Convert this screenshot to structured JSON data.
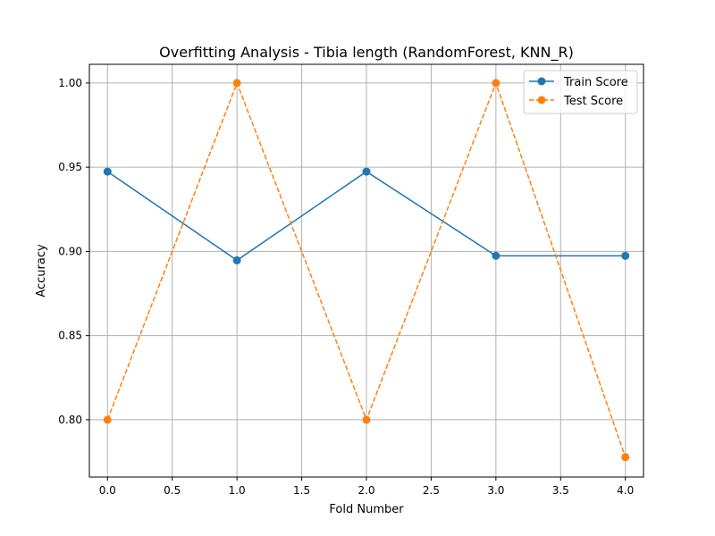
{
  "chart_data": {
    "type": "line",
    "title": "Overfitting Analysis - Tibia length (RandomForest, KNN_R)",
    "xlabel": "Fold Number",
    "ylabel": "Accuracy",
    "xlim": [
      -0.14,
      4.14
    ],
    "ylim": [
      0.766,
      1.0111
    ],
    "x": [
      0,
      1,
      2,
      3,
      4
    ],
    "xticks": [
      0.0,
      0.5,
      1.0,
      1.5,
      2.0,
      2.5,
      3.0,
      3.5,
      4.0
    ],
    "xtick_labels": [
      "0.0",
      "0.5",
      "1.0",
      "1.5",
      "2.0",
      "2.5",
      "3.0",
      "3.5",
      "4.0"
    ],
    "yticks": [
      0.8,
      0.85,
      0.9,
      0.95,
      1.0
    ],
    "ytick_labels": [
      "0.80",
      "0.85",
      "0.90",
      "0.95",
      "1.00"
    ],
    "grid": true,
    "legend_position": "top-right",
    "series": [
      {
        "name": "Train Score",
        "values": [
          0.9474,
          0.8947,
          0.9474,
          0.8974,
          0.8974
        ],
        "color": "#1f77b4",
        "linestyle": "solid",
        "marker": "circle"
      },
      {
        "name": "Test Score",
        "values": [
          0.8,
          1.0,
          0.8,
          1.0,
          0.7778
        ],
        "color": "#ff7f0e",
        "linestyle": "dashed",
        "marker": "circle"
      }
    ]
  }
}
